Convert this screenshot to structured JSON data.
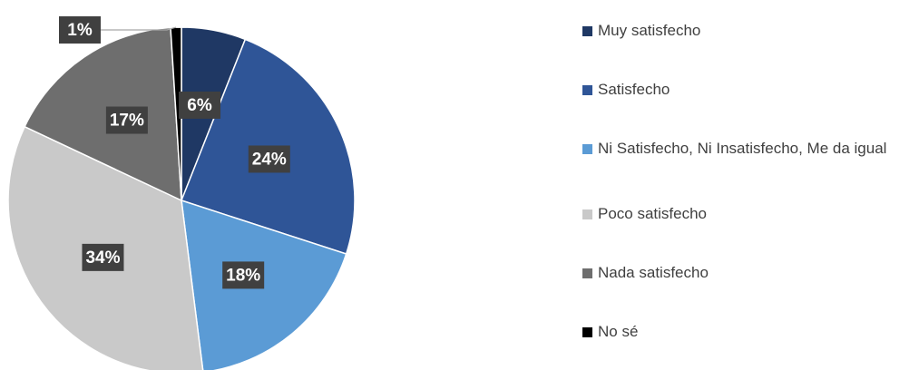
{
  "chart_data": {
    "type": "pie",
    "categories": [
      "Muy satisfecho",
      "Satisfecho",
      "Ni Satisfecho, Ni Insatisfecho, Me da igual",
      "Poco satisfecho",
      "Nada satisfecho",
      "No sé"
    ],
    "values": [
      6,
      24,
      18,
      34,
      17,
      1
    ],
    "value_labels": [
      "6%",
      "24%",
      "18%",
      "34%",
      "17%",
      "1%"
    ],
    "colors": [
      "#1f3864",
      "#2f5597",
      "#5b9bd5",
      "#c9c9c9",
      "#6e6e6e",
      "#000000"
    ],
    "legend": "right"
  }
}
